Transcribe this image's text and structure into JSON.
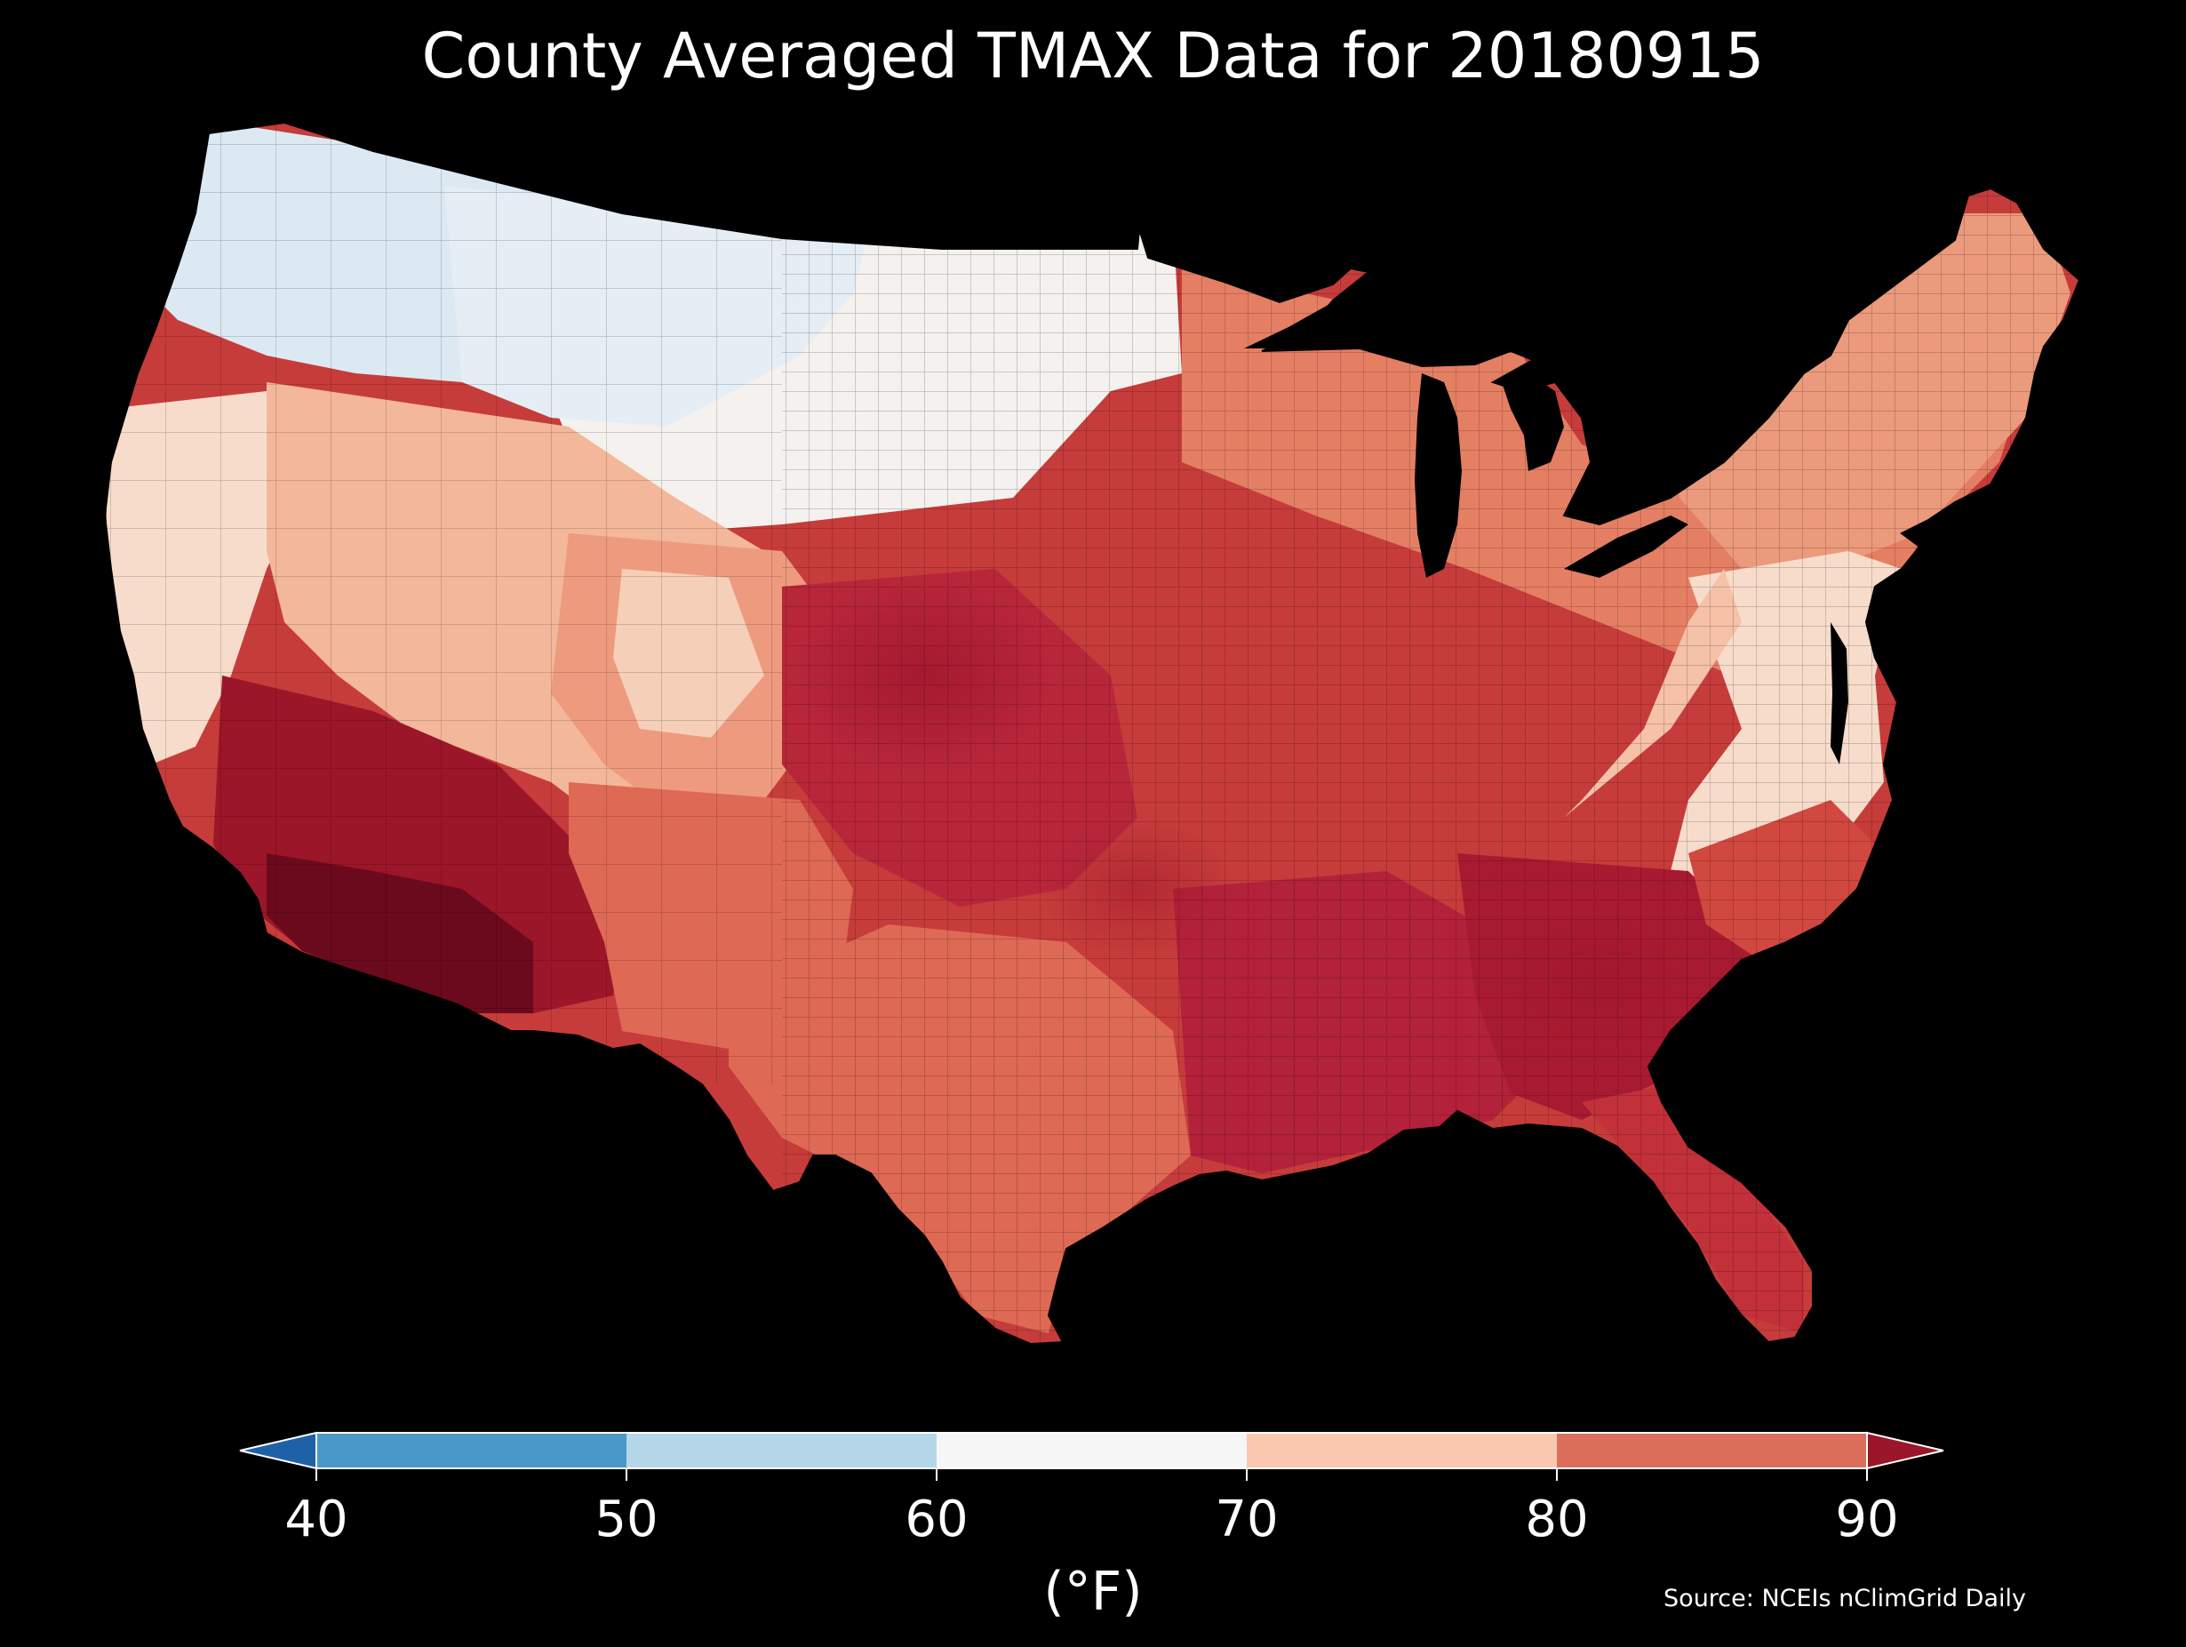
{
  "title": "County Averaged TMAX Data for 20180915",
  "colorbar": {
    "ticks": [
      "40",
      "50",
      "60",
      "70",
      "80",
      "90"
    ],
    "unit": "(°F)",
    "bins": [
      {
        "from": 40,
        "to": 50,
        "color": "#4a98c9"
      },
      {
        "from": 50,
        "to": 60,
        "color": "#b6d7e8"
      },
      {
        "from": 60,
        "to": 70,
        "color": "#f6f6f6"
      },
      {
        "from": 70,
        "to": 80,
        "color": "#fac8af"
      },
      {
        "from": 80,
        "to": 90,
        "color": "#dc6f5b"
      }
    ],
    "under_color": "#1f61a8",
    "over_color": "#9b1628"
  },
  "source": "Source: NCEIs nClimGrid Daily",
  "map": {
    "region": "Contiguous United States",
    "background_color": "#000000",
    "regions": [
      {
        "name": "pacific-northwest",
        "color": "#d6e6f1"
      },
      {
        "name": "northern-rockies",
        "color": "#e3edf4"
      },
      {
        "name": "northern-plains",
        "color": "#f4f1ee"
      },
      {
        "name": "west-coast",
        "color": "#f8dccb"
      },
      {
        "name": "great-basin",
        "color": "#f3b79b"
      },
      {
        "name": "desert-southwest",
        "color": "#9b1628"
      },
      {
        "name": "southern-arizona",
        "color": "#6b0a1d"
      },
      {
        "name": "central-plains",
        "color": "#b8263a"
      },
      {
        "name": "midwest",
        "color": "#c63c3a"
      },
      {
        "name": "great-lakes",
        "color": "#e47f63"
      },
      {
        "name": "northeast",
        "color": "#ec9a7c"
      },
      {
        "name": "appalachia",
        "color": "#f5c1a7"
      },
      {
        "name": "mid-atlantic-coast",
        "color": "#f8dccb"
      },
      {
        "name": "texas",
        "color": "#de6955"
      },
      {
        "name": "gulf-coast",
        "color": "#b3213a"
      },
      {
        "name": "southeast",
        "color": "#a81a31"
      },
      {
        "name": "florida",
        "color": "#c2303a"
      }
    ]
  }
}
